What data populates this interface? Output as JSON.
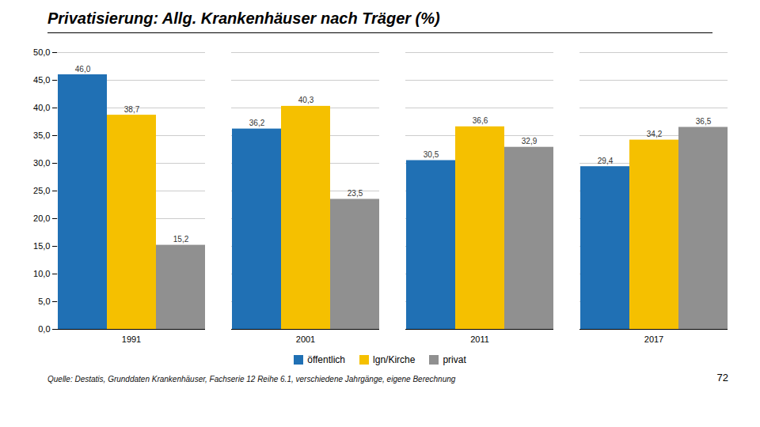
{
  "chart_data": {
    "type": "bar",
    "title": "Privatisierung: Allg. Krankenhäuser nach Träger (%)",
    "categories": [
      "1991",
      "2001",
      "2011",
      "2017"
    ],
    "series": [
      {
        "name": "öffentlich",
        "color": "#2070B4",
        "values": [
          46.0,
          36.2,
          30.5,
          29.4
        ],
        "value_labels": [
          "46,0",
          "36,2",
          "30,5",
          "29,4"
        ]
      },
      {
        "name": "lgn/Kirche",
        "color": "#F5C000",
        "values": [
          38.7,
          40.3,
          36.6,
          34.2
        ],
        "value_labels": [
          "38,7",
          "40,3",
          "36,6",
          "34,2"
        ]
      },
      {
        "name": "privat",
        "color": "#909090",
        "values": [
          15.2,
          23.5,
          32.9,
          36.5
        ],
        "value_labels": [
          "15,2",
          "23,5",
          "32,9",
          "36,5"
        ]
      }
    ],
    "ylim": [
      0,
      50
    ],
    "yticks": [
      {
        "value": 0,
        "label": "0,0"
      },
      {
        "value": 5,
        "label": "5,0"
      },
      {
        "value": 10,
        "label": "10,0"
      },
      {
        "value": 15,
        "label": "15,0"
      },
      {
        "value": 20,
        "label": "20,0"
      },
      {
        "value": 25,
        "label": "25,0"
      },
      {
        "value": 30,
        "label": "30,0"
      },
      {
        "value": 35,
        "label": "35,0"
      },
      {
        "value": 40,
        "label": "40,0"
      },
      {
        "value": 45,
        "label": "45,0"
      },
      {
        "value": 50,
        "label": "50,0"
      }
    ],
    "grid": true,
    "data_labels": true,
    "legend": "bottom",
    "source": "Quelle: Destatis, Grunddaten Krankenhäuser, Fachserie 12 Reihe 6.1, verschiedene Jahrgänge, eigene Berechnung",
    "page_number": "72"
  }
}
